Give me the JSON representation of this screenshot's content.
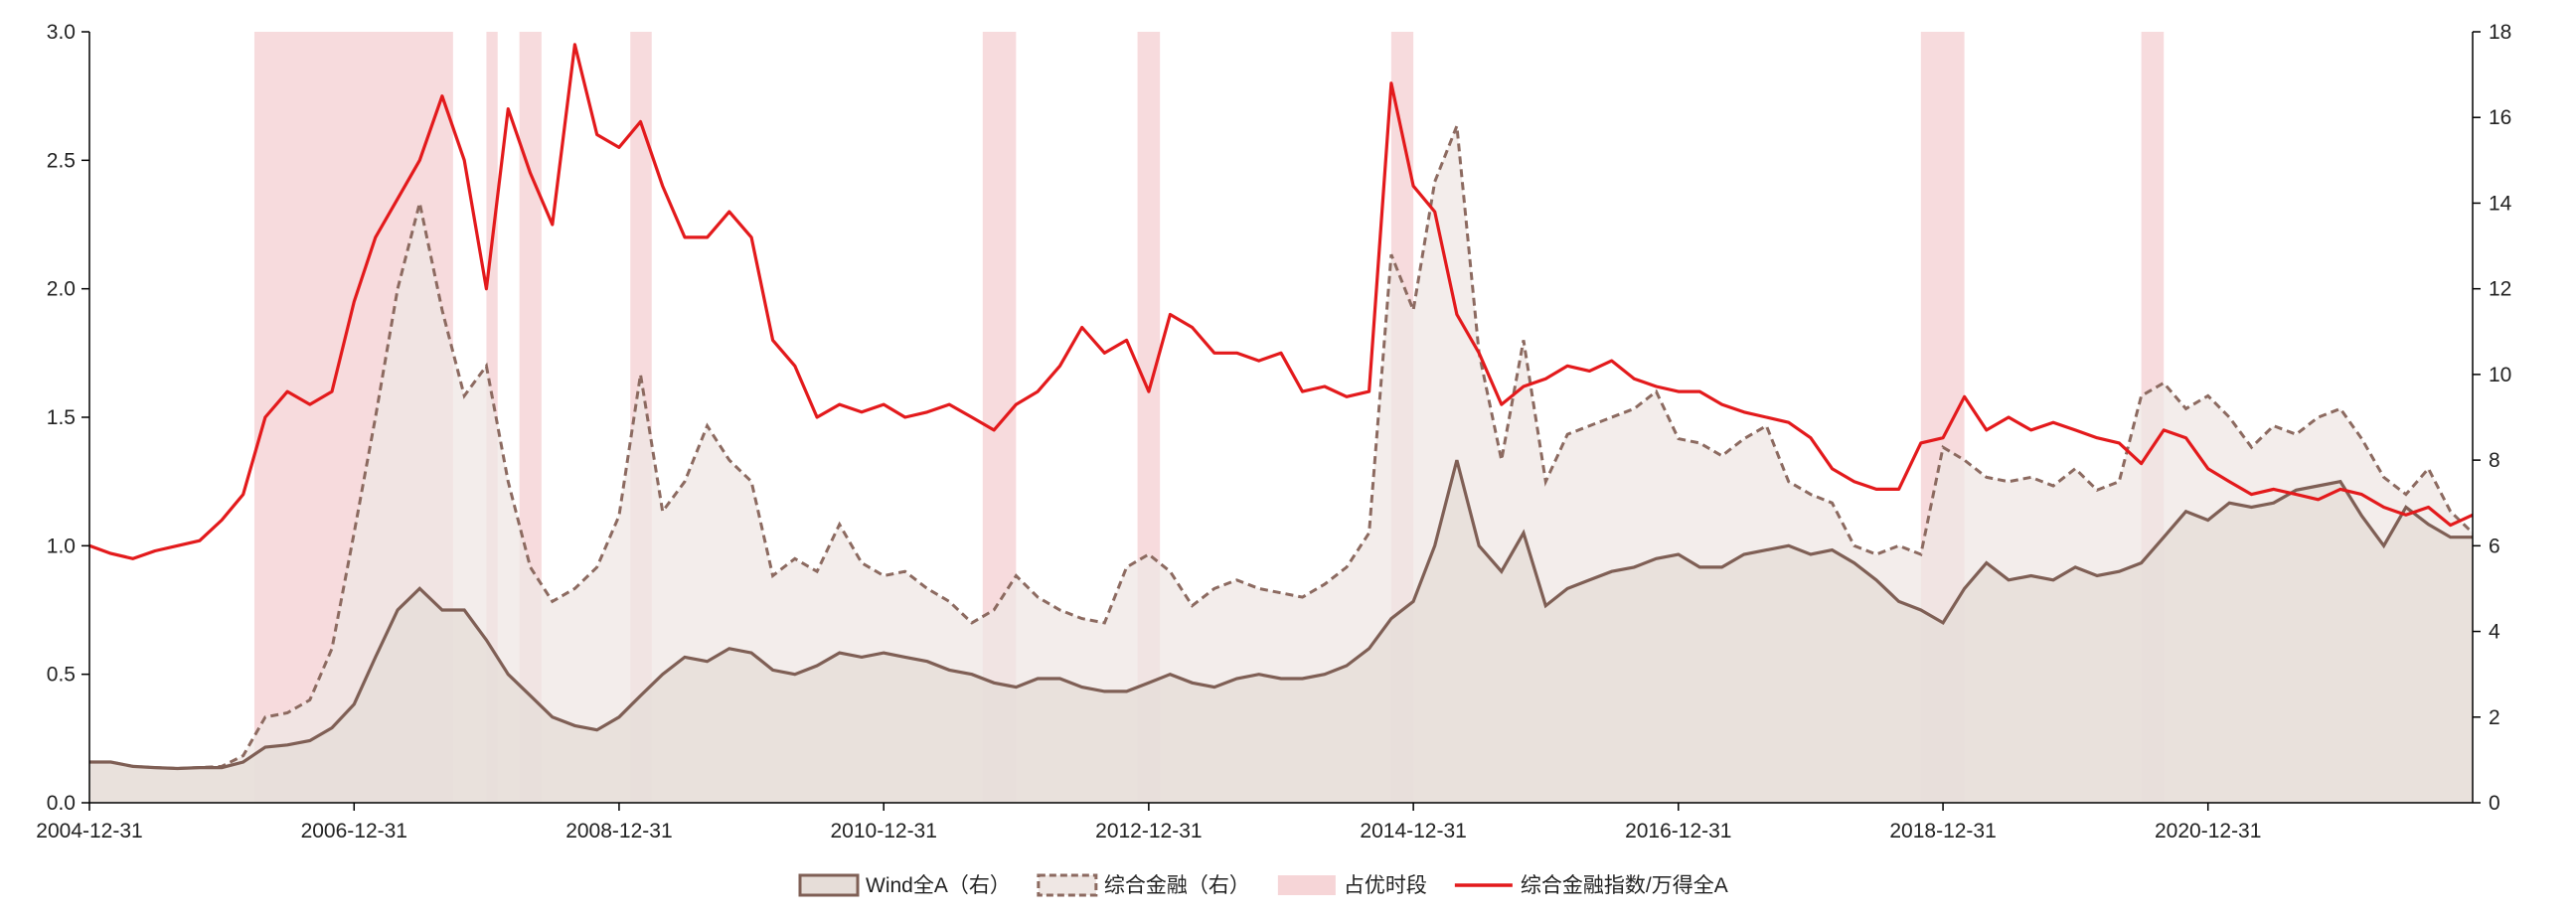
{
  "chart_data": {
    "type": "line",
    "title": "",
    "xlabel": "",
    "ylabel_left": "",
    "ylabel_right": "",
    "x_start": "2004-12-31",
    "x_end": "2022-12-31",
    "x_ticks": [
      "2004-12-31",
      "2006-12-31",
      "2008-12-31",
      "2010-12-31",
      "2012-12-31",
      "2014-12-31",
      "2016-12-31",
      "2018-12-31",
      "2020-12-31"
    ],
    "ylim_left": [
      0,
      3.0
    ],
    "yticks_left": [
      "0.0",
      "0.5",
      "1.0",
      "1.5",
      "2.0",
      "2.5",
      "3.0"
    ],
    "ylim_right": [
      0,
      18
    ],
    "yticks_right": [
      "0",
      "2",
      "4",
      "6",
      "8",
      "10",
      "12",
      "14",
      "16",
      "18"
    ],
    "grid": false,
    "legend_position": "bottom-center",
    "colors": {
      "ratio_line": "#e31a1c",
      "wind_fill": "#e6ddd8",
      "wind_line": "#7f5f55",
      "fin_fill": "#efe7e4",
      "fin_line": "#8c6a60",
      "shade": "#f6d5d7"
    },
    "dominant_periods": [
      [
        "2006-03-31",
        "2007-09-30"
      ],
      [
        "2007-12-31",
        "2008-01-31"
      ],
      [
        "2008-03-31",
        "2008-05-31"
      ],
      [
        "2009-01-31",
        "2009-03-31"
      ],
      [
        "2011-09-30",
        "2011-12-31"
      ],
      [
        "2012-11-30",
        "2013-01-31"
      ],
      [
        "2014-10-31",
        "2014-12-31"
      ],
      [
        "2018-10-31",
        "2019-02-28"
      ],
      [
        "2020-06-30",
        "2020-08-31"
      ]
    ],
    "series": [
      {
        "name": "Wind全A（右）",
        "axis": "right",
        "style": "area-solid",
        "x": [
          "2004-12-31",
          "2005-02-28",
          "2005-04-30",
          "2005-06-30",
          "2005-08-31",
          "2005-10-31",
          "2005-12-31",
          "2006-02-28",
          "2006-04-30",
          "2006-06-30",
          "2006-08-31",
          "2006-10-31",
          "2006-12-31",
          "2007-02-28",
          "2007-04-30",
          "2007-06-30",
          "2007-08-31",
          "2007-10-31",
          "2007-12-31",
          "2008-02-29",
          "2008-04-30",
          "2008-06-30",
          "2008-08-31",
          "2008-10-31",
          "2008-12-31",
          "2009-02-28",
          "2009-04-30",
          "2009-06-30",
          "2009-08-31",
          "2009-10-31",
          "2009-12-31",
          "2010-02-28",
          "2010-04-30",
          "2010-06-30",
          "2010-08-31",
          "2010-10-31",
          "2010-12-31",
          "2011-02-28",
          "2011-04-30",
          "2011-06-30",
          "2011-08-31",
          "2011-10-31",
          "2011-12-31",
          "2012-02-29",
          "2012-04-30",
          "2012-06-30",
          "2012-08-31",
          "2012-10-31",
          "2012-12-31",
          "2013-02-28",
          "2013-04-30",
          "2013-06-30",
          "2013-08-31",
          "2013-10-31",
          "2013-12-31",
          "2014-02-28",
          "2014-04-30",
          "2014-06-30",
          "2014-08-31",
          "2014-10-31",
          "2014-12-31",
          "2015-02-28",
          "2015-04-30",
          "2015-06-30",
          "2015-08-31",
          "2015-10-31",
          "2015-12-31",
          "2016-02-29",
          "2016-04-30",
          "2016-06-30",
          "2016-08-31",
          "2016-10-31",
          "2016-12-31",
          "2017-02-28",
          "2017-04-30",
          "2017-06-30",
          "2017-08-31",
          "2017-10-31",
          "2017-12-31",
          "2018-02-28",
          "2018-04-30",
          "2018-06-30",
          "2018-08-31",
          "2018-10-31",
          "2018-12-31",
          "2019-02-28",
          "2019-04-30",
          "2019-06-30",
          "2019-08-31",
          "2019-10-31",
          "2019-12-31",
          "2020-02-29",
          "2020-04-30",
          "2020-06-30",
          "2020-08-31",
          "2020-10-31",
          "2020-12-31",
          "2021-02-28",
          "2021-04-30",
          "2021-06-30",
          "2021-08-31",
          "2021-10-31",
          "2021-12-31",
          "2022-02-28",
          "2022-04-30",
          "2022-06-30",
          "2022-08-31",
          "2022-10-31",
          "2022-12-31"
        ],
        "values": [
          0.95,
          0.95,
          0.85,
          0.82,
          0.8,
          0.82,
          0.82,
          0.95,
          1.3,
          1.35,
          1.45,
          1.75,
          2.3,
          3.4,
          4.5,
          5.0,
          4.5,
          4.5,
          3.8,
          3.0,
          2.5,
          2.0,
          1.8,
          1.7,
          2.0,
          2.5,
          3.0,
          3.4,
          3.3,
          3.6,
          3.5,
          3.1,
          3.0,
          3.2,
          3.5,
          3.4,
          3.5,
          3.4,
          3.3,
          3.1,
          3.0,
          2.8,
          2.7,
          2.9,
          2.9,
          2.7,
          2.6,
          2.6,
          2.8,
          3.0,
          2.8,
          2.7,
          2.9,
          3.0,
          2.9,
          2.9,
          3.0,
          3.2,
          3.6,
          4.3,
          4.7,
          6.0,
          8.0,
          6.0,
          5.4,
          6.3,
          4.6,
          5.0,
          5.2,
          5.4,
          5.5,
          5.7,
          5.8,
          5.5,
          5.5,
          5.8,
          5.9,
          6.0,
          5.8,
          5.9,
          5.6,
          5.2,
          4.7,
          4.5,
          4.2,
          5.0,
          5.6,
          5.2,
          5.3,
          5.2,
          5.5,
          5.3,
          5.4,
          5.6,
          6.2,
          6.8,
          6.6,
          7.0,
          6.9,
          7.0,
          7.3,
          7.4,
          7.5,
          6.7,
          6.0,
          6.9,
          6.5,
          6.2,
          6.2
        ]
      },
      {
        "name": "综合金融（右）",
        "axis": "right",
        "style": "area-dashed",
        "x": [
          "2004-12-31",
          "2005-02-28",
          "2005-04-30",
          "2005-06-30",
          "2005-08-31",
          "2005-10-31",
          "2005-12-31",
          "2006-02-28",
          "2006-04-30",
          "2006-06-30",
          "2006-08-31",
          "2006-10-31",
          "2006-12-31",
          "2007-02-28",
          "2007-04-30",
          "2007-06-30",
          "2007-08-31",
          "2007-10-31",
          "2007-12-31",
          "2008-02-29",
          "2008-04-30",
          "2008-06-30",
          "2008-08-31",
          "2008-10-31",
          "2008-12-31",
          "2009-02-28",
          "2009-04-30",
          "2009-06-30",
          "2009-08-31",
          "2009-10-31",
          "2009-12-31",
          "2010-02-28",
          "2010-04-30",
          "2010-06-30",
          "2010-08-31",
          "2010-10-31",
          "2010-12-31",
          "2011-02-28",
          "2011-04-30",
          "2011-06-30",
          "2011-08-31",
          "2011-10-31",
          "2011-12-31",
          "2012-02-29",
          "2012-04-30",
          "2012-06-30",
          "2012-08-31",
          "2012-10-31",
          "2012-12-31",
          "2013-02-28",
          "2013-04-30",
          "2013-06-30",
          "2013-08-31",
          "2013-10-31",
          "2013-12-31",
          "2014-02-28",
          "2014-04-30",
          "2014-06-30",
          "2014-08-31",
          "2014-10-31",
          "2014-12-31",
          "2015-02-28",
          "2015-04-30",
          "2015-06-30",
          "2015-08-31",
          "2015-10-31",
          "2015-12-31",
          "2016-02-29",
          "2016-04-30",
          "2016-06-30",
          "2016-08-31",
          "2016-10-31",
          "2016-12-31",
          "2017-02-28",
          "2017-04-30",
          "2017-06-30",
          "2017-08-31",
          "2017-10-31",
          "2017-12-31",
          "2018-02-28",
          "2018-04-30",
          "2018-06-30",
          "2018-08-31",
          "2018-10-31",
          "2018-12-31",
          "2019-02-28",
          "2019-04-30",
          "2019-06-30",
          "2019-08-31",
          "2019-10-31",
          "2019-12-31",
          "2020-02-29",
          "2020-04-30",
          "2020-06-30",
          "2020-08-31",
          "2020-10-31",
          "2020-12-31",
          "2021-02-28",
          "2021-04-30",
          "2021-06-30",
          "2021-08-31",
          "2021-10-31",
          "2021-12-31",
          "2022-02-28",
          "2022-04-30",
          "2022-06-30",
          "2022-08-31",
          "2022-10-31",
          "2022-12-31"
        ],
        "values": [
          0.95,
          0.95,
          0.85,
          0.82,
          0.8,
          0.82,
          0.85,
          1.1,
          2.0,
          2.1,
          2.4,
          3.6,
          6.3,
          9.0,
          12.0,
          14.0,
          11.5,
          9.5,
          10.2,
          7.5,
          5.5,
          4.7,
          5.0,
          5.5,
          6.7,
          10.0,
          6.8,
          7.5,
          8.8,
          8.0,
          7.5,
          5.3,
          5.7,
          5.4,
          6.5,
          5.6,
          5.3,
          5.4,
          5.0,
          4.7,
          4.2,
          4.5,
          5.3,
          4.8,
          4.5,
          4.3,
          4.2,
          5.5,
          5.8,
          5.4,
          4.6,
          5.0,
          5.2,
          5.0,
          4.9,
          4.8,
          5.1,
          5.5,
          6.3,
          12.8,
          11.5,
          14.5,
          15.8,
          10.5,
          8.0,
          10.8,
          7.5,
          8.6,
          8.8,
          9.0,
          9.2,
          9.6,
          8.5,
          8.4,
          8.1,
          8.5,
          8.8,
          7.5,
          7.2,
          7.0,
          6.0,
          5.8,
          6.0,
          5.8,
          8.3,
          8.0,
          7.6,
          7.5,
          7.6,
          7.4,
          7.8,
          7.3,
          7.5,
          9.5,
          9.8,
          9.2,
          9.5,
          9.0,
          8.3,
          8.8,
          8.6,
          9.0,
          9.2,
          8.5,
          7.6,
          7.2,
          7.8,
          6.8,
          6.3
        ]
      },
      {
        "name": "综合金融指数/万得全A",
        "axis": "left",
        "style": "line",
        "x": [
          "2004-12-31",
          "2005-02-28",
          "2005-04-30",
          "2005-06-30",
          "2005-08-31",
          "2005-10-31",
          "2005-12-31",
          "2006-02-28",
          "2006-04-30",
          "2006-06-30",
          "2006-08-31",
          "2006-10-31",
          "2006-12-31",
          "2007-02-28",
          "2007-04-30",
          "2007-06-30",
          "2007-08-31",
          "2007-10-31",
          "2007-12-31",
          "2008-02-29",
          "2008-04-30",
          "2008-06-30",
          "2008-08-31",
          "2008-10-31",
          "2008-12-31",
          "2009-02-28",
          "2009-04-30",
          "2009-06-30",
          "2009-08-31",
          "2009-10-31",
          "2009-12-31",
          "2010-02-28",
          "2010-04-30",
          "2010-06-30",
          "2010-08-31",
          "2010-10-31",
          "2010-12-31",
          "2011-02-28",
          "2011-04-30",
          "2011-06-30",
          "2011-08-31",
          "2011-10-31",
          "2011-12-31",
          "2012-02-29",
          "2012-04-30",
          "2012-06-30",
          "2012-08-31",
          "2012-10-31",
          "2012-12-31",
          "2013-02-28",
          "2013-04-30",
          "2013-06-30",
          "2013-08-31",
          "2013-10-31",
          "2013-12-31",
          "2014-02-28",
          "2014-04-30",
          "2014-06-30",
          "2014-08-31",
          "2014-10-31",
          "2014-12-31",
          "2015-02-28",
          "2015-04-30",
          "2015-06-30",
          "2015-08-31",
          "2015-10-31",
          "2015-12-31",
          "2016-02-29",
          "2016-04-30",
          "2016-06-30",
          "2016-08-31",
          "2016-10-31",
          "2016-12-31",
          "2017-02-28",
          "2017-04-30",
          "2017-06-30",
          "2017-08-31",
          "2017-10-31",
          "2017-12-31",
          "2018-02-28",
          "2018-04-30",
          "2018-06-30",
          "2018-08-31",
          "2018-10-31",
          "2018-12-31",
          "2019-02-28",
          "2019-04-30",
          "2019-06-30",
          "2019-08-31",
          "2019-10-31",
          "2019-12-31",
          "2020-02-29",
          "2020-04-30",
          "2020-06-30",
          "2020-08-31",
          "2020-10-31",
          "2020-12-31",
          "2021-02-28",
          "2021-04-30",
          "2021-06-30",
          "2021-08-31",
          "2021-10-31",
          "2021-12-31",
          "2022-02-28",
          "2022-04-30",
          "2022-06-30",
          "2022-08-31",
          "2022-10-31",
          "2022-12-31"
        ],
        "values": [
          1.0,
          0.97,
          0.95,
          0.98,
          1.0,
          1.02,
          1.1,
          1.2,
          1.5,
          1.6,
          1.55,
          1.6,
          1.95,
          2.2,
          2.35,
          2.5,
          2.75,
          2.5,
          2.0,
          2.7,
          2.45,
          2.25,
          2.95,
          2.6,
          2.55,
          2.65,
          2.4,
          2.2,
          2.2,
          2.3,
          2.2,
          1.8,
          1.7,
          1.5,
          1.55,
          1.52,
          1.55,
          1.5,
          1.52,
          1.55,
          1.5,
          1.45,
          1.55,
          1.6,
          1.7,
          1.85,
          1.75,
          1.8,
          1.6,
          1.9,
          1.85,
          1.75,
          1.75,
          1.72,
          1.75,
          1.6,
          1.62,
          1.58,
          1.6,
          2.8,
          2.4,
          2.3,
          1.9,
          1.75,
          1.55,
          1.62,
          1.65,
          1.7,
          1.68,
          1.72,
          1.65,
          1.62,
          1.6,
          1.6,
          1.55,
          1.52,
          1.5,
          1.48,
          1.42,
          1.3,
          1.25,
          1.22,
          1.22,
          1.4,
          1.42,
          1.58,
          1.45,
          1.5,
          1.45,
          1.48,
          1.45,
          1.42,
          1.4,
          1.32,
          1.45,
          1.42,
          1.3,
          1.25,
          1.2,
          1.22,
          1.2,
          1.18,
          1.22,
          1.2,
          1.15,
          1.12,
          1.15,
          1.08,
          1.12
        ]
      }
    ],
    "legend": [
      {
        "label": "Wind全A（右）",
        "kind": "area-solid"
      },
      {
        "label": "综合金融（右）",
        "kind": "area-dashed"
      },
      {
        "label": "占优时段",
        "kind": "shade"
      },
      {
        "label": "综合金融指数/万得全A",
        "kind": "line"
      }
    ]
  }
}
